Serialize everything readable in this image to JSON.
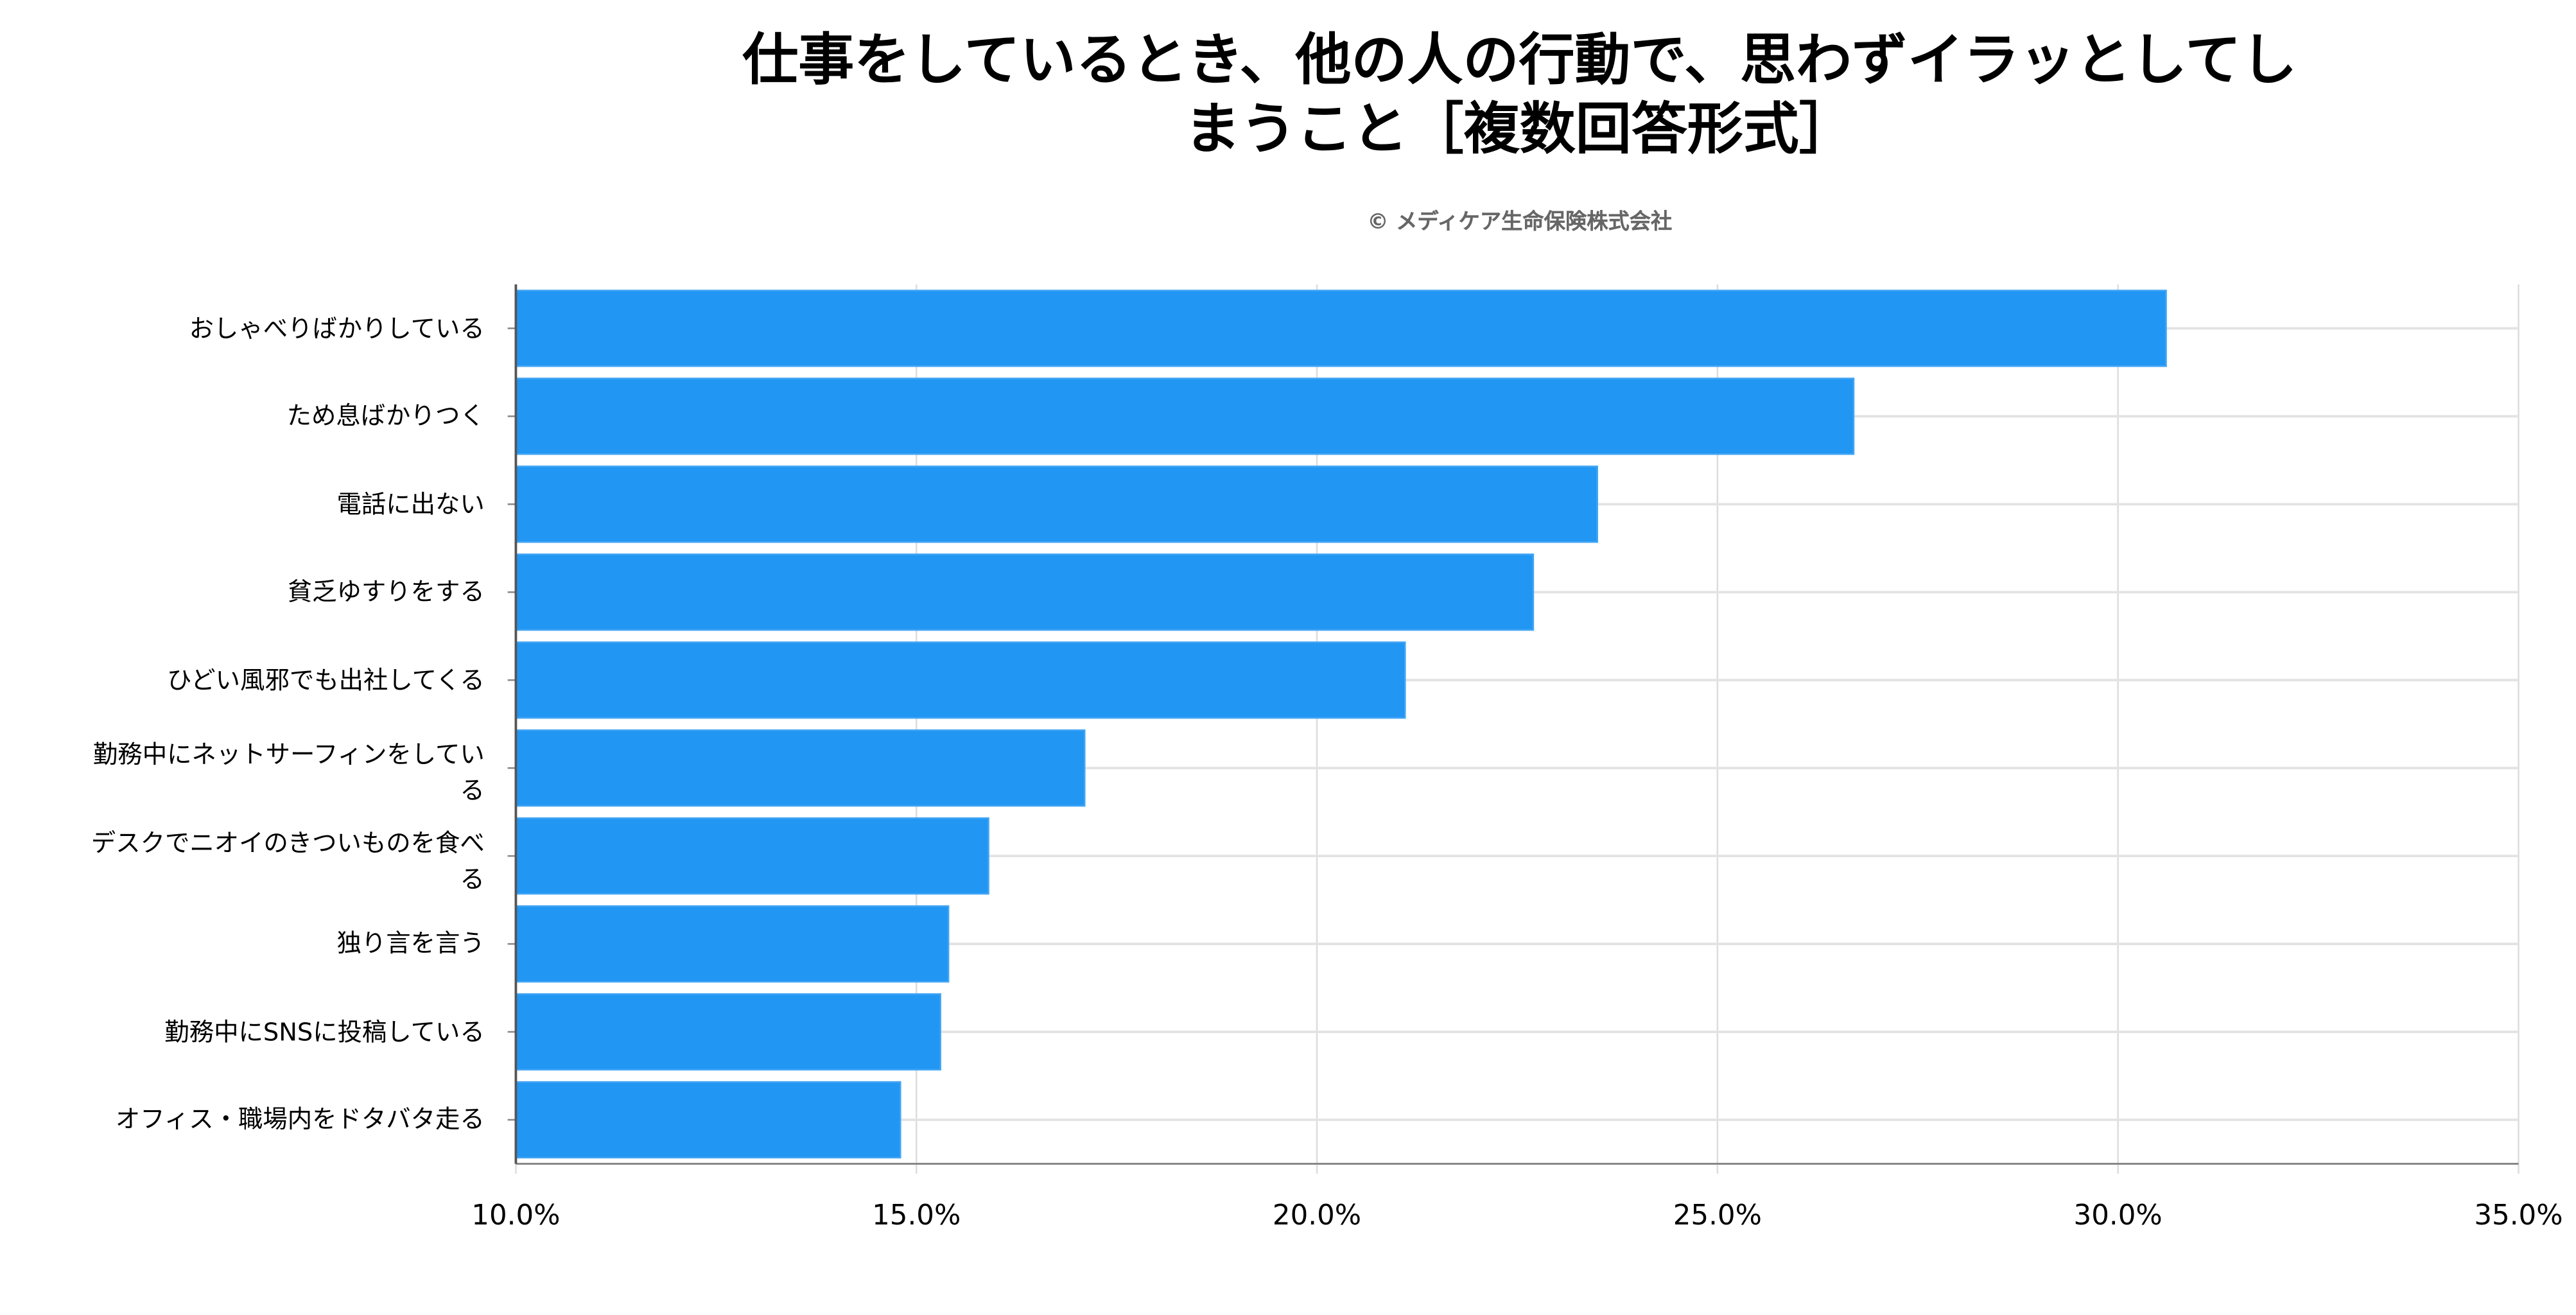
{
  "chart_data": {
    "type": "bar",
    "orientation": "horizontal",
    "title": "仕事をしているとき、他の人の行動で、思わずイラッとしてしまうこと［複数回答形式］",
    "title_lines": [
      "仕事をしているとき、他の人の行動で、思わずイラッとしてし",
      "まうこと［複数回答形式］"
    ],
    "subtitle": "© メディケア生命保険株式会社",
    "categories": [
      "おしゃべりばかりしている",
      "ため息ばかりつく",
      "電話に出ない",
      "貧乏ゆすりをする",
      "ひどい風邪でも出社してくる",
      "勤務中にネットサーフィンをしている",
      "デスクでニオイのきついものを食べる",
      "独り言を言う",
      "勤務中にSNSに投稿している",
      "オフィス・職場内をドタバタ走る"
    ],
    "values": [
      30.6,
      26.7,
      23.5,
      22.7,
      21.1,
      17.1,
      15.9,
      15.4,
      15.3,
      14.8
    ],
    "unit": "%",
    "xlim": [
      10,
      35
    ],
    "xticks": [
      10,
      15,
      20,
      25,
      30,
      35
    ],
    "xtick_labels": [
      "10.0%",
      "15.0%",
      "20.0%",
      "25.0%",
      "30.0%",
      "35.0%"
    ],
    "xlabel": "",
    "ylabel": "",
    "grid": true,
    "legend": "none",
    "bar_color": "#2196F3"
  }
}
